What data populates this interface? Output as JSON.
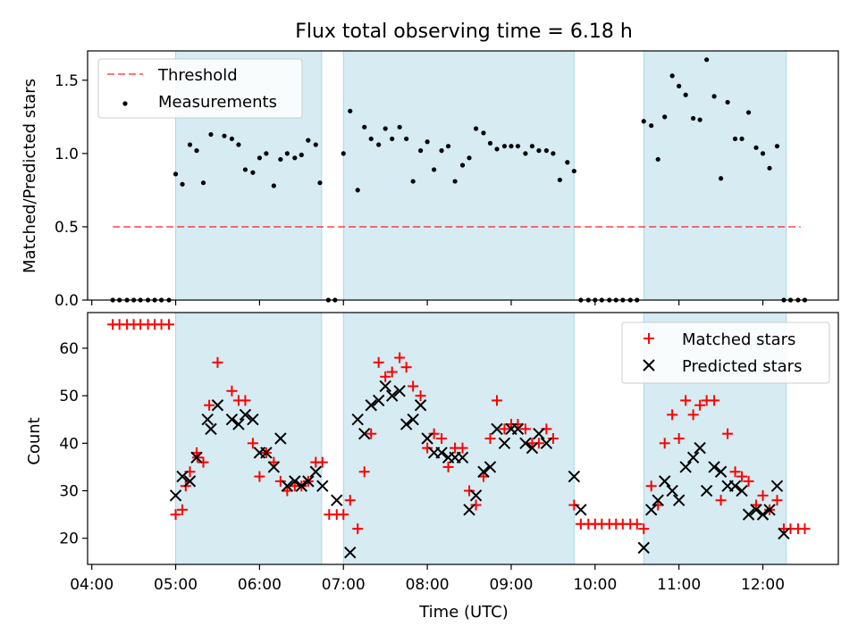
{
  "title": "Flux total observing time = 6.18 h",
  "colors": {
    "shade": "#add8e6",
    "threshold": "#ff0000",
    "matched": "#ff0000",
    "predicted": "#000000",
    "measurement": "#000000"
  },
  "chart_data": [
    {
      "type": "scatter",
      "panel": "top",
      "xlabel": "",
      "ylabel": "Matched/Predicted stars",
      "xlim": [
        3.95,
        12.9
      ],
      "ylim": [
        0.0,
        1.7
      ],
      "yticks": [
        0.0,
        0.5,
        1.0,
        1.5
      ],
      "ytick_labels": [
        "0.0",
        "0.5",
        "1.0",
        "1.5"
      ],
      "shaded_spans": [
        [
          5.0,
          6.74
        ],
        [
          7.0,
          9.75
        ],
        [
          10.58,
          12.28
        ]
      ],
      "legend": {
        "position": "upper left",
        "entries": [
          {
            "label": "Threshold",
            "style": "dashed-line"
          },
          {
            "label": "Measurements",
            "style": "dot"
          }
        ]
      },
      "threshold": {
        "y": 0.5,
        "x_range": [
          4.25,
          12.45
        ]
      },
      "measurements": {
        "x": [
          4.25,
          4.33,
          4.42,
          4.5,
          4.58,
          4.67,
          4.75,
          4.83,
          4.92,
          5.0,
          5.08,
          5.17,
          5.25,
          5.33,
          5.42,
          5.58,
          5.67,
          5.75,
          5.83,
          5.92,
          6.0,
          6.08,
          6.17,
          6.25,
          6.33,
          6.42,
          6.5,
          6.58,
          6.67,
          6.72,
          7.0,
          7.08,
          7.17,
          7.25,
          7.33,
          7.42,
          7.5,
          7.58,
          7.67,
          7.75,
          7.83,
          7.92,
          8.0,
          8.08,
          8.17,
          8.25,
          8.33,
          8.42,
          8.5,
          8.58,
          8.67,
          8.75,
          8.83,
          8.92,
          9.0,
          9.08,
          9.17,
          9.25,
          9.33,
          9.42,
          9.5,
          9.58,
          9.67,
          9.75,
          10.58,
          10.67,
          10.75,
          10.83,
          10.92,
          11.0,
          11.08,
          11.17,
          11.25,
          11.33,
          11.42,
          11.5,
          11.58,
          11.67,
          11.75,
          11.83,
          11.92,
          12.0,
          12.08,
          12.17,
          12.25,
          12.5
        ],
        "y": [
          0,
          0,
          0,
          0,
          0,
          0,
          0,
          0,
          0,
          0.86,
          0.79,
          1.06,
          1.02,
          0.8,
          1.13,
          1.12,
          1.1,
          1.06,
          0.89,
          0.87,
          0.97,
          1.0,
          0.78,
          0.96,
          1.0,
          0.97,
          0.99,
          1.09,
          1.06,
          0.8,
          1.0,
          1.29,
          0.75,
          1.18,
          1.1,
          1.06,
          1.17,
          1.1,
          1.18,
          1.1,
          0.81,
          1.02,
          1.08,
          0.89,
          1.02,
          1.05,
          0.81,
          0.92,
          0.97,
          1.17,
          1.14,
          1.07,
          1.03,
          1.05,
          1.05,
          1.05,
          1.0,
          1.05,
          1.02,
          1.02,
          1.0,
          0.82,
          0.94,
          0.88,
          1.22,
          1.19,
          0.96,
          1.25,
          1.53,
          1.46,
          1.4,
          1.24,
          1.23,
          1.64,
          1.39,
          0.83,
          1.35,
          1.1,
          1.1,
          1.28,
          1.04,
          1.0,
          0.9,
          1.05,
          0,
          0
        ]
      },
      "extra_zero_points_x": [
        6.82,
        6.9,
        9.83,
        9.92,
        10.0,
        10.08,
        10.17,
        10.25,
        10.33,
        10.42,
        10.5,
        12.33,
        12.42
      ]
    },
    {
      "type": "scatter",
      "panel": "bottom",
      "xlabel": "Time (UTC)",
      "ylabel": "Count",
      "xlim": [
        3.95,
        12.9
      ],
      "ylim": [
        14.5,
        67.5
      ],
      "xticks": [
        4,
        5,
        6,
        7,
        8,
        9,
        10,
        11,
        12
      ],
      "xtick_labels": [
        "04:00",
        "05:00",
        "06:00",
        "07:00",
        "08:00",
        "09:00",
        "10:00",
        "11:00",
        "12:00"
      ],
      "yticks": [
        20,
        30,
        40,
        50,
        60
      ],
      "ytick_labels": [
        "20",
        "30",
        "40",
        "50",
        "60"
      ],
      "shaded_spans": [
        [
          5.0,
          6.74
        ],
        [
          7.0,
          9.75
        ],
        [
          10.58,
          12.28
        ]
      ],
      "legend": {
        "position": "upper right",
        "entries": [
          {
            "label": "Matched stars",
            "marker": "+"
          },
          {
            "label": "Predicted stars",
            "marker": "x"
          }
        ]
      },
      "series": [
        {
          "name": "Matched stars",
          "marker": "+",
          "x": [
            4.25,
            4.33,
            4.42,
            4.5,
            4.58,
            4.67,
            4.75,
            4.83,
            4.92,
            5.0,
            5.08,
            5.17,
            5.25,
            5.33,
            5.4,
            5.5,
            5.67,
            5.75,
            5.83,
            5.92,
            6.0,
            6.08,
            6.17,
            6.25,
            6.33,
            6.42,
            6.5,
            6.58,
            6.67,
            6.75,
            6.83,
            6.92,
            7.0,
            7.08,
            7.17,
            7.25,
            7.33,
            7.42,
            7.5,
            7.58,
            7.67,
            7.75,
            7.83,
            7.92,
            8.0,
            8.08,
            8.17,
            8.25,
            8.33,
            8.42,
            8.5,
            8.58,
            8.67,
            8.75,
            8.83,
            8.92,
            9.0,
            9.08,
            9.17,
            9.25,
            9.33,
            9.42,
            9.5,
            9.75,
            9.83,
            9.92,
            10.0,
            10.08,
            10.17,
            10.25,
            10.33,
            10.42,
            10.5,
            10.58,
            10.67,
            10.75,
            10.83,
            10.92,
            11.0,
            11.08,
            11.17,
            11.25,
            11.33,
            11.42,
            11.5,
            11.58,
            11.67,
            11.75,
            11.83,
            11.92,
            12.0,
            12.08,
            12.17,
            12.25,
            12.33,
            12.42,
            12.5
          ],
          "y": [
            65,
            65,
            65,
            65,
            65,
            65,
            65,
            65,
            65,
            25,
            26,
            34,
            38,
            36,
            48,
            57,
            51,
            49,
            49,
            40,
            33,
            38,
            36,
            32,
            30,
            31,
            31,
            32,
            36,
            36,
            25,
            25,
            25,
            28,
            22,
            34,
            42,
            57,
            54,
            55,
            58,
            56,
            52,
            50,
            39,
            42,
            41,
            35,
            39,
            39,
            30,
            27,
            33,
            41,
            49,
            43,
            44,
            44,
            43,
            40,
            40,
            43,
            41,
            27,
            23,
            23,
            23,
            23,
            23,
            23,
            23,
            23,
            23,
            22,
            31,
            27,
            40,
            46,
            41,
            49,
            46,
            48,
            49,
            49,
            28,
            42,
            34,
            33,
            32,
            27,
            29,
            26,
            28,
            22,
            22,
            22,
            22
          ],
          "extra_first": [
            31,
            37
          ]
        },
        {
          "name": "Predicted stars",
          "marker": "x",
          "x": [
            5.0,
            5.08,
            5.17,
            5.25,
            5.38,
            5.42,
            5.5,
            5.67,
            5.75,
            5.83,
            5.92,
            6.0,
            6.08,
            6.17,
            6.25,
            6.33,
            6.42,
            6.5,
            6.58,
            6.67,
            6.75,
            6.92,
            7.08,
            7.17,
            7.25,
            7.33,
            7.42,
            7.5,
            7.58,
            7.67,
            7.75,
            7.83,
            7.92,
            8.0,
            8.08,
            8.17,
            8.25,
            8.33,
            8.42,
            8.5,
            8.58,
            8.67,
            8.75,
            8.83,
            8.92,
            9.0,
            9.08,
            9.17,
            9.25,
            9.33,
            9.42,
            9.75,
            9.83,
            10.58,
            10.67,
            10.75,
            10.83,
            10.92,
            11.0,
            11.08,
            11.17,
            11.25,
            11.33,
            11.42,
            11.5,
            11.58,
            11.67,
            11.75,
            11.83,
            11.92,
            12.0,
            12.08,
            12.17,
            12.25
          ],
          "y": [
            29,
            33,
            32,
            37,
            45,
            43,
            48,
            45,
            44,
            46,
            45,
            38,
            38,
            35,
            41,
            31,
            32,
            31,
            32,
            34,
            31,
            28,
            17,
            45,
            42,
            48,
            49,
            52,
            50,
            51,
            44,
            45,
            48,
            41,
            38,
            38,
            37,
            37,
            37,
            26,
            29,
            34,
            35,
            43,
            40,
            43,
            43,
            40,
            39,
            42,
            40,
            33,
            26,
            18,
            26,
            28,
            32,
            30,
            28,
            35,
            37,
            39,
            30,
            35,
            34,
            31,
            31,
            30,
            25,
            26,
            25,
            26,
            31,
            21
          ]
        }
      ]
    }
  ]
}
